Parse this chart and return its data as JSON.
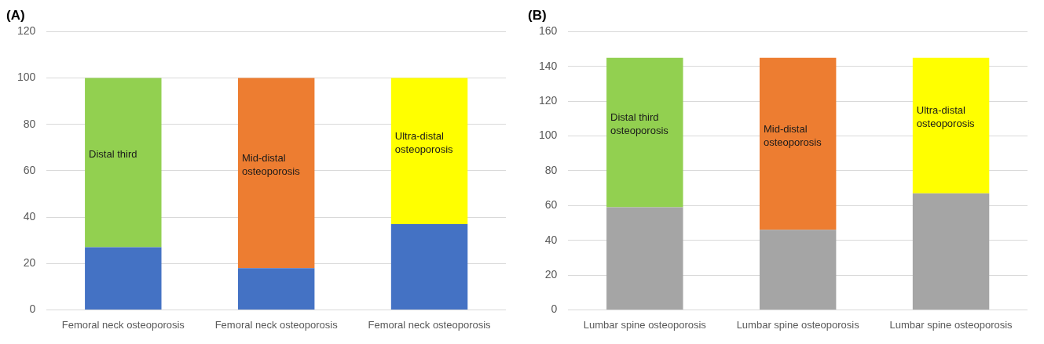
{
  "chart_data": [
    {
      "type": "bar",
      "title": "(A)",
      "stacked": true,
      "categories": [
        "Femoral neck osteoporosis",
        "Femoral neck osteoporosis",
        "Femoral neck osteoporosis"
      ],
      "ylim": [
        0,
        120
      ],
      "yticks": [
        0,
        20,
        40,
        60,
        80,
        100,
        120
      ],
      "grid": "y",
      "legend": false,
      "series": [
        {
          "color": "#4472c4",
          "values": [
            27,
            18,
            37
          ]
        },
        {
          "name": "Distal third",
          "color": "#92d050",
          "values": [
            73,
            null,
            null
          ]
        },
        {
          "name": "Mid-distal osteoporosis",
          "color": "#ed7d31",
          "values": [
            null,
            82,
            null
          ]
        },
        {
          "name": "Ultra-distal osteoporosis",
          "color": "#ffff00",
          "values": [
            null,
            null,
            63
          ]
        }
      ]
    },
    {
      "type": "bar",
      "title": "(B)",
      "stacked": true,
      "categories": [
        "Lumbar spine osteoporosis",
        "Lumbar spine osteoporosis",
        "Lumbar spine osteoporosis"
      ],
      "ylim": [
        0,
        160
      ],
      "yticks": [
        0,
        20,
        40,
        60,
        80,
        100,
        120,
        140,
        160
      ],
      "grid": "y",
      "legend": false,
      "series": [
        {
          "color": "#a5a5a5",
          "values": [
            59,
            46,
            67
          ]
        },
        {
          "name": "Distal third osteoporosis",
          "color": "#92d050",
          "values": [
            86,
            null,
            null
          ]
        },
        {
          "name": "Mid-distal osteoporosis",
          "color": "#ed7d31",
          "values": [
            null,
            99,
            null
          ]
        },
        {
          "name": "Ultra-distal osteoporosis",
          "color": "#ffff00",
          "values": [
            null,
            null,
            78
          ]
        }
      ]
    }
  ]
}
